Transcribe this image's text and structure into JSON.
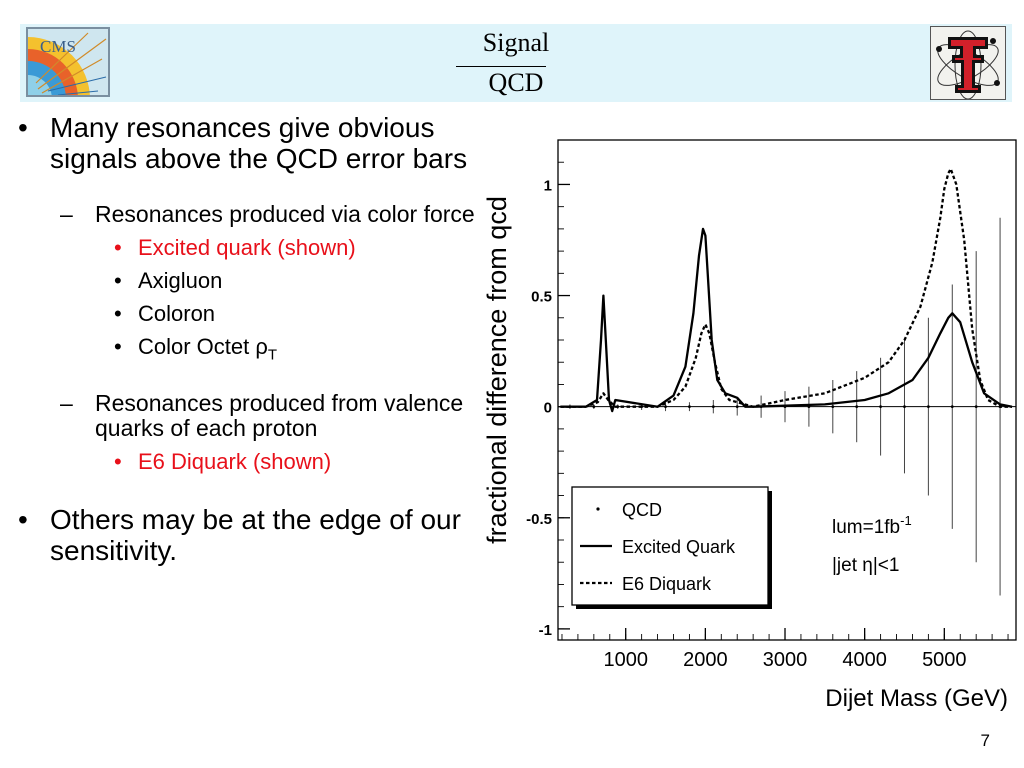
{
  "header": {
    "title_numerator": "Signal",
    "title_denominator": "QCD",
    "left_logo_text": "CMS",
    "left_logo_icon": "cms-logo",
    "right_logo_icon": "texas-tech-double-t-logo",
    "header_bg": "#dff4fa"
  },
  "bullets": {
    "item1": "Many resonances give obvious signals above the QCD error bars",
    "sub1": "Resonances produced via color force",
    "sub1_items": [
      "Excited quark (shown)",
      "Axigluon",
      "Coloron",
      "Color Octet ρ"
    ],
    "sub1_item4_subscript": "T",
    "sub2": "Resonances produced from valence quarks of each proton",
    "sub2_items": [
      "E6 Diquark (shown)"
    ],
    "item2": "Others may be at the edge of our sensitivity.",
    "highlight_color": "#e8101a"
  },
  "chart_data": {
    "type": "line",
    "xlabel": "Dijet Mass (GeV)",
    "ylabel": "fractional difference from qcd",
    "xlim": [
      150,
      5900
    ],
    "ylim": [
      -1.05,
      1.2
    ],
    "x_ticks": [
      "1000",
      "2000",
      "3000",
      "4000",
      "5000"
    ],
    "y_ticks": [
      "-1",
      "-0.5",
      "0",
      "0.5",
      "1"
    ],
    "legend_placement": "bottom-left",
    "annotations": [
      "lum=1fb",
      "|jet η|<1"
    ],
    "annotation_superscript": "-1",
    "series": [
      {
        "name": "QCD",
        "style": "error-bars",
        "x": [
          300,
          600,
          900,
          1200,
          1500,
          1800,
          2100,
          2400,
          2700,
          3000,
          3300,
          3600,
          3900,
          4200,
          4500,
          4800,
          5100,
          5400,
          5700
        ],
        "y": [
          0,
          0,
          0,
          0,
          0,
          0,
          0,
          0,
          0,
          0,
          0,
          0,
          0,
          0,
          0,
          0,
          0,
          0,
          0
        ],
        "err": [
          0.01,
          0.01,
          0.01,
          0.015,
          0.02,
          0.02,
          0.03,
          0.04,
          0.05,
          0.07,
          0.09,
          0.12,
          0.16,
          0.22,
          0.3,
          0.4,
          0.55,
          0.7,
          0.85
        ]
      },
      {
        "name": "Excited Quark",
        "style": "solid",
        "x": [
          180,
          500,
          640,
          690,
          720,
          750,
          790,
          830,
          870,
          1400,
          1600,
          1750,
          1850,
          1920,
          1970,
          2000,
          2030,
          2080,
          2150,
          2250,
          2400,
          2500,
          2620,
          3500,
          4000,
          4300,
          4600,
          4800,
          4950,
          5050,
          5100,
          5200,
          5350,
          5500,
          5700,
          5850
        ],
        "y": [
          0,
          0,
          0.03,
          0.3,
          0.5,
          0.3,
          0.03,
          -0.02,
          0.03,
          0,
          0.05,
          0.18,
          0.42,
          0.68,
          0.8,
          0.77,
          0.6,
          0.3,
          0.12,
          0.06,
          0.04,
          0,
          0,
          0.01,
          0.03,
          0.06,
          0.12,
          0.22,
          0.33,
          0.4,
          0.42,
          0.38,
          0.2,
          0.06,
          0.01,
          0
        ]
      },
      {
        "name": "E6 Diquark",
        "style": "dashed",
        "x": [
          180,
          500,
          650,
          720,
          780,
          870,
          1400,
          1600,
          1750,
          1880,
          1950,
          2000,
          2050,
          2120,
          2200,
          2300,
          2400,
          2600,
          3000,
          3500,
          4000,
          4300,
          4500,
          4700,
          4850,
          4950,
          5000,
          5050,
          5080,
          5150,
          5250,
          5350,
          5450,
          5550,
          5700,
          5850
        ],
        "y": [
          0,
          0,
          0.02,
          0.06,
          0.03,
          0,
          0,
          0.03,
          0.09,
          0.22,
          0.33,
          0.37,
          0.33,
          0.2,
          0.08,
          0.03,
          0.02,
          0,
          0.03,
          0.06,
          0.13,
          0.2,
          0.3,
          0.45,
          0.65,
          0.85,
          0.98,
          1.05,
          1.07,
          1.0,
          0.75,
          0.35,
          0.12,
          0.03,
          0,
          0
        ]
      }
    ]
  },
  "page_number": "7"
}
